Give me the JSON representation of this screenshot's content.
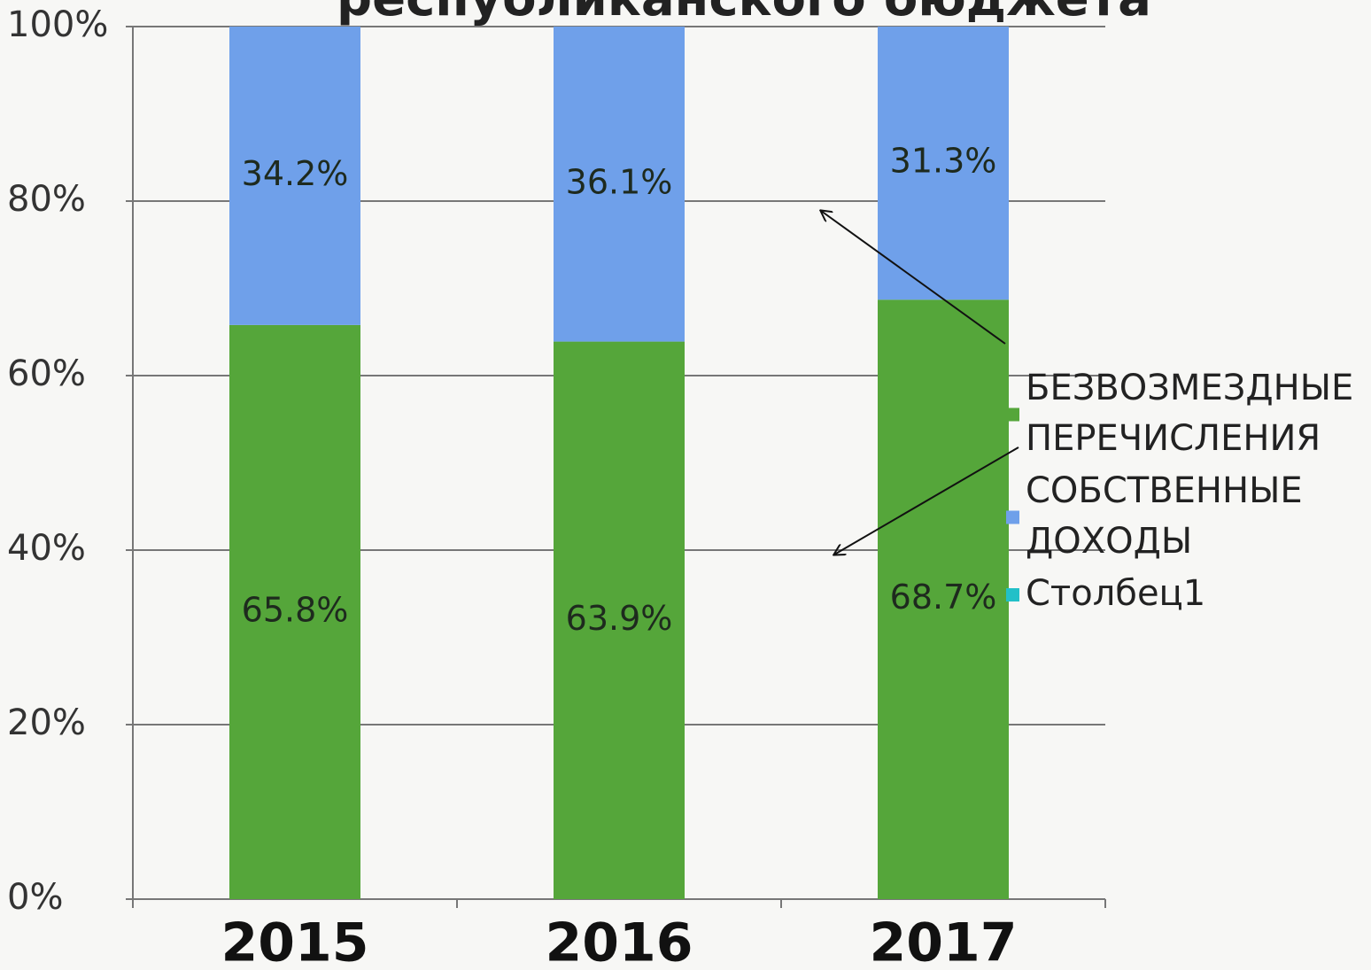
{
  "chart_data": {
    "type": "stacked_bar",
    "title": "республиканского бюджета",
    "categories": [
      "2015",
      "2016",
      "2017"
    ],
    "series": [
      {
        "name": "БЕЗВОЗМЕЗДНЫЕ ПЕРЕЧИСЛЕНИЯ",
        "color": "#55a63a",
        "values": [
          65.8,
          63.9,
          68.7
        ],
        "value_labels": [
          "65.8%",
          "63.9%",
          "68.7%"
        ]
      },
      {
        "name": "СОБСТВЕННЫЕ ДОХОДЫ",
        "color": "#6fa0ea",
        "values": [
          34.2,
          36.1,
          31.3
        ],
        "value_labels": [
          "34.2%",
          "36.1%",
          "31.3%"
        ]
      },
      {
        "name": "Столбец1",
        "color": "#22c0c8",
        "values": [
          null,
          null,
          null
        ]
      }
    ],
    "ylim": [
      0,
      100
    ],
    "yticks": [
      {
        "value": 0,
        "label": "0%"
      },
      {
        "value": 20,
        "label": "20%"
      },
      {
        "value": 40,
        "label": "40%"
      },
      {
        "value": 60,
        "label": "60%"
      },
      {
        "value": 80,
        "label": "80%"
      },
      {
        "value": 100,
        "label": "100%"
      }
    ],
    "grid": true,
    "legend": "right"
  }
}
